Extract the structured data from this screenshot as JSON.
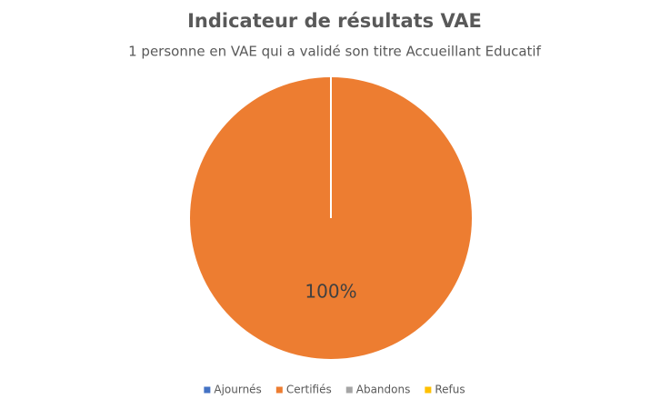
{
  "chart_data": {
    "type": "pie",
    "title": "Indicateur de résultats VAE",
    "subtitle": "1 personne en VAE qui a validé son titre Accueillant Educatif",
    "categories": [
      "Ajournés",
      "Certifiés",
      "Abandons",
      "Refus"
    ],
    "values": [
      0,
      100,
      0,
      0
    ],
    "value_labels": [
      null,
      "100%",
      null,
      null
    ],
    "colors": [
      "#4472c4",
      "#ed7d31",
      "#a5a5a5",
      "#ffc000"
    ],
    "legend": "bottom"
  }
}
